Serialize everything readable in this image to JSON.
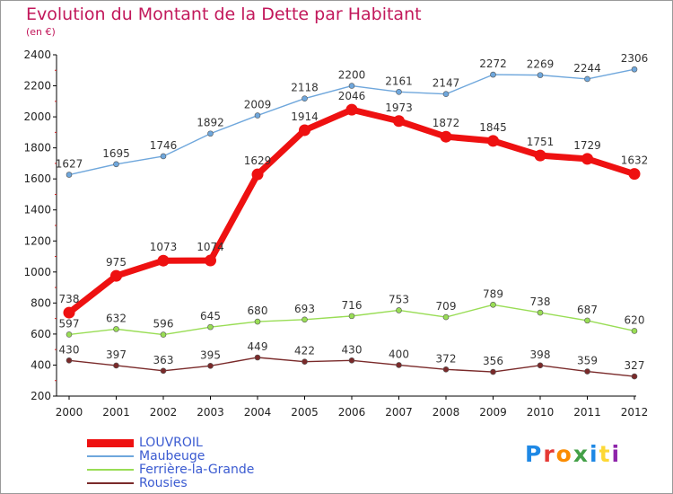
{
  "title": "Evolution du Montant de la Dette par Habitant",
  "subtitle": "(en €)",
  "logo": {
    "text": "Proxiti",
    "letter_colors": [
      "#1e88e5",
      "#e53935",
      "#fb8c00",
      "#43a047",
      "#1e88e5",
      "#fdd835",
      "#8e24aa"
    ]
  },
  "chart_data": {
    "type": "line",
    "categories": [
      "2000",
      "2001",
      "2002",
      "2003",
      "2004",
      "2005",
      "2006",
      "2007",
      "2008",
      "2009",
      "2010",
      "2011",
      "2012"
    ],
    "ylim": [
      200,
      2400
    ],
    "y_ticks": [
      "200",
      "400",
      "600",
      "800",
      "1000",
      "1200",
      "1400",
      "1600",
      "1800",
      "2000",
      "2200",
      "2400"
    ],
    "grid": false,
    "legend_position": "bottom-left",
    "series": [
      {
        "name": "LOUVROIL",
        "color": "#ee1111",
        "values": [
          738,
          975,
          1073,
          1074,
          1629,
          1914,
          2046,
          1973,
          1872,
          1845,
          1751,
          1729,
          1632
        ],
        "labels": [
          "738",
          "975",
          "1073",
          "1074",
          "1629",
          "1914",
          "2046",
          "1973",
          "1872",
          "1845",
          "1751",
          "1729",
          "1632"
        ]
      },
      {
        "name": "Maubeuge",
        "color": "#6fa7dc",
        "values": [
          1627,
          1695,
          1746,
          1892,
          2009,
          2118,
          2200,
          2161,
          2147,
          2272,
          2269,
          2244,
          2306
        ],
        "labels": [
          "1627",
          "1695",
          "1746",
          "1892",
          "2009",
          "2118",
          "2200",
          "2161",
          "2147",
          "2272",
          "2269",
          "2244",
          "2306"
        ]
      },
      {
        "name": "Ferrière-la-Grande",
        "color": "#99dd55",
        "values": [
          597,
          632,
          596,
          645,
          680,
          693,
          716,
          753,
          709,
          789,
          738,
          687,
          620
        ],
        "labels": [
          "597",
          "632",
          "596",
          "645",
          "680",
          "693",
          "716",
          "753",
          "709",
          "789",
          "738",
          "687",
          "620"
        ]
      },
      {
        "name": "Rousies",
        "color": "#7a2a2a",
        "values": [
          430,
          397,
          363,
          395,
          449,
          422,
          430,
          400,
          372,
          356,
          398,
          359,
          327
        ],
        "labels": [
          "430",
          "397",
          "363",
          "395",
          "449",
          "422",
          "430",
          "400",
          "372",
          "356",
          "398",
          "359",
          "327"
        ]
      }
    ]
  }
}
